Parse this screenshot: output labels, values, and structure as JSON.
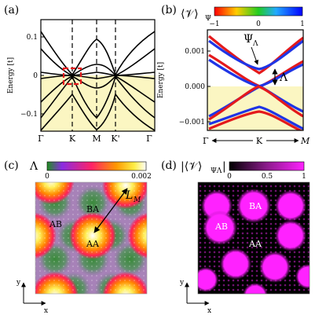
{
  "panels": {
    "a": {
      "label": "(a)",
      "ylabel": "Energy [t]",
      "yticks": [
        "0.1",
        "0",
        "−0.1"
      ],
      "xticks": [
        "Γ",
        "K",
        "M",
        "K'",
        "Γ"
      ]
    },
    "b": {
      "label": "(b)",
      "title": "⟨𝒱⟩",
      "title_sub": "Ψ",
      "cbar_ticks": [
        "−1",
        "0",
        "1"
      ],
      "ylabel": "Energy [t]",
      "yticks": [
        "0.001",
        "0.000",
        "−0.001"
      ],
      "xticks": [
        "Γ",
        "K",
        "M"
      ],
      "annot_psi": "Ψ",
      "annot_psi_sub": "Λ",
      "annot_lambda": "Λ"
    },
    "c": {
      "label": "(c)",
      "title": "Λ",
      "cbar_ticks": [
        "0",
        "0.002"
      ],
      "region_labels": [
        "BA",
        "AB",
        "AA"
      ],
      "lm_label": "L",
      "lm_sub": "M",
      "axis_x": "x",
      "axis_y": "y"
    },
    "d": {
      "label": "(d)",
      "title": "|⟨𝒱⟩",
      "title_sub": "ΨΛ",
      "title_end": "|",
      "cbar_ticks": [
        "0",
        "0.5",
        "1"
      ],
      "region_labels": [
        "BA",
        "AB",
        "AA"
      ],
      "axis_x": "x",
      "axis_y": "y"
    }
  },
  "colors": {
    "fill_negative": "#fbf6c2",
    "red": "#e41a1c",
    "blue": "#1f35e6",
    "magenta": "#ff1fff"
  }
}
